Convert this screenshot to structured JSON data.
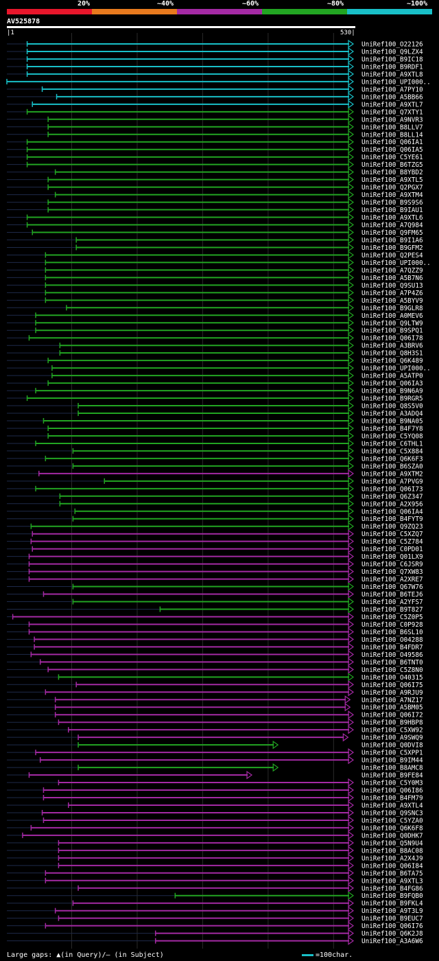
{
  "legend": {
    "colors": [
      "#e8162b",
      "#e87a1e",
      "#a42aa4",
      "#22a522",
      "#19c0c8"
    ],
    "labels": [
      "20%",
      "~40%",
      "~60%",
      "~80%",
      "~100%"
    ]
  },
  "query": {
    "id": "AV525878",
    "start": "1",
    "end": "530"
  },
  "footer": {
    "gaps_text": "Large gaps: ▲(in Query)/– (in Subject)",
    "scale_text": "=100char."
  },
  "chart_data": {
    "type": "alignment",
    "query_length": 530,
    "hits": [
      {
        "label": "UniRef100_O22126",
        "color": "cyan",
        "start": 32,
        "end": 530
      },
      {
        "label": "UniRef100_Q9LZX4",
        "color": "cyan",
        "start": 32,
        "end": 530
      },
      {
        "label": "UniRef100_B9IC18",
        "color": "cyan",
        "start": 32,
        "end": 530
      },
      {
        "label": "UniRef100_B9RDF1",
        "color": "cyan",
        "start": 32,
        "end": 530
      },
      {
        "label": "UniRef100_A9XTL8",
        "color": "cyan",
        "start": 32,
        "end": 530
      },
      {
        "label": "UniRef100_UPI000..",
        "color": "cyan",
        "start": 1,
        "end": 530
      },
      {
        "label": "UniRef100_A7PY10",
        "color": "cyan",
        "start": 55,
        "end": 530
      },
      {
        "label": "UniRef100_A5BB66",
        "color": "cyan",
        "start": 77,
        "end": 530
      },
      {
        "label": "UniRef100_A9XTL7",
        "color": "cyan",
        "start": 40,
        "end": 530
      },
      {
        "label": "UniRef100_Q7XTY1",
        "color": "green",
        "start": 32,
        "end": 530
      },
      {
        "label": "UniRef100_A9NVR3",
        "color": "green",
        "start": 64,
        "end": 530
      },
      {
        "label": "UniRef100_B8LLV7",
        "color": "green",
        "start": 64,
        "end": 530
      },
      {
        "label": "UniRef100_B8LL14",
        "color": "green",
        "start": 64,
        "end": 530
      },
      {
        "label": "UniRef100_Q06IA1",
        "color": "green",
        "start": 32,
        "end": 530
      },
      {
        "label": "UniRef100_Q06IA5",
        "color": "green",
        "start": 32,
        "end": 530
      },
      {
        "label": "UniRef100_C5YE61",
        "color": "green",
        "start": 32,
        "end": 530
      },
      {
        "label": "UniRef100_B6TZG5",
        "color": "green",
        "start": 32,
        "end": 530
      },
      {
        "label": "UniRef100_B8YBD2",
        "color": "green",
        "start": 75,
        "end": 530
      },
      {
        "label": "UniRef100_A9XTL5",
        "color": "green",
        "start": 64,
        "end": 530
      },
      {
        "label": "UniRef100_Q2PGX7",
        "color": "green",
        "start": 64,
        "end": 530
      },
      {
        "label": "UniRef100_A9XTM4",
        "color": "green",
        "start": 75,
        "end": 530
      },
      {
        "label": "UniRef100_B9S9S6",
        "color": "green",
        "start": 64,
        "end": 530
      },
      {
        "label": "UniRef100_B9IAU1",
        "color": "green",
        "start": 64,
        "end": 530
      },
      {
        "label": "UniRef100_A9XTL6",
        "color": "green",
        "start": 32,
        "end": 530
      },
      {
        "label": "UniRef100_A7Q984",
        "color": "green",
        "start": 32,
        "end": 530
      },
      {
        "label": "UniRef100_Q9FM65",
        "color": "green",
        "start": 40,
        "end": 530
      },
      {
        "label": "UniRef100_B9I1A6",
        "color": "green",
        "start": 107,
        "end": 530
      },
      {
        "label": "UniRef100_B9GFM2",
        "color": "green",
        "start": 107,
        "end": 530
      },
      {
        "label": "UniRef100_Q2PES4",
        "color": "green",
        "start": 60,
        "end": 530
      },
      {
        "label": "UniRef100_UPI000..",
        "color": "green",
        "start": 60,
        "end": 530
      },
      {
        "label": "UniRef100_A7QZZ9",
        "color": "green",
        "start": 60,
        "end": 530
      },
      {
        "label": "UniRef100_A5B7N6",
        "color": "green",
        "start": 60,
        "end": 530
      },
      {
        "label": "UniRef100_Q9SU13",
        "color": "green",
        "start": 60,
        "end": 530
      },
      {
        "label": "UniRef100_A7P4Z6",
        "color": "green",
        "start": 60,
        "end": 530
      },
      {
        "label": "UniRef100_A5BYV9",
        "color": "green",
        "start": 60,
        "end": 530
      },
      {
        "label": "UniRef100_B9GLR8",
        "color": "green",
        "start": 92,
        "end": 530
      },
      {
        "label": "UniRef100_A0MEV6",
        "color": "green",
        "start": 45,
        "end": 530
      },
      {
        "label": "UniRef100_Q9LTW9",
        "color": "green",
        "start": 45,
        "end": 530
      },
      {
        "label": "UniRef100_B9SPQ1",
        "color": "green",
        "start": 45,
        "end": 530
      },
      {
        "label": "UniRef100_Q06I78",
        "color": "green",
        "start": 35,
        "end": 530
      },
      {
        "label": "UniRef100_A3BRV6",
        "color": "green",
        "start": 82,
        "end": 530
      },
      {
        "label": "UniRef100_Q8H3S1",
        "color": "green",
        "start": 82,
        "end": 530
      },
      {
        "label": "UniRef100_Q6K489",
        "color": "green",
        "start": 64,
        "end": 530
      },
      {
        "label": "UniRef100_UPI000..",
        "color": "green",
        "start": 70,
        "end": 530
      },
      {
        "label": "UniRef100_A5ATP0",
        "color": "green",
        "start": 70,
        "end": 530
      },
      {
        "label": "UniRef100_Q06IA3",
        "color": "green",
        "start": 64,
        "end": 530
      },
      {
        "label": "UniRef100_B9N6A9",
        "color": "green",
        "start": 45,
        "end": 530
      },
      {
        "label": "UniRef100_B9RGR5",
        "color": "green",
        "start": 32,
        "end": 530
      },
      {
        "label": "UniRef100_Q8S5V0",
        "color": "green",
        "start": 110,
        "end": 530
      },
      {
        "label": "UniRef100_A3ADQ4",
        "color": "green",
        "start": 110,
        "end": 530
      },
      {
        "label": "UniRef100_B9NA05",
        "color": "green",
        "start": 57,
        "end": 530
      },
      {
        "label": "UniRef100_B4F7Y8",
        "color": "green",
        "start": 64,
        "end": 530
      },
      {
        "label": "UniRef100_C5YQ08",
        "color": "green",
        "start": 64,
        "end": 530
      },
      {
        "label": "UniRef100_C6THL1",
        "color": "green",
        "start": 45,
        "end": 530
      },
      {
        "label": "UniRef100_C5X884",
        "color": "green",
        "start": 102,
        "end": 530
      },
      {
        "label": "UniRef100_Q6K6F3",
        "color": "green",
        "start": 60,
        "end": 530
      },
      {
        "label": "UniRef100_B6SZA0",
        "color": "green",
        "start": 102,
        "end": 530
      },
      {
        "label": "UniRef100_A9XTM2",
        "color": "magenta",
        "start": 50,
        "end": 530
      },
      {
        "label": "UniRef100_A7PVG9",
        "color": "green",
        "start": 150,
        "end": 530
      },
      {
        "label": "UniRef100_Q06I73",
        "color": "green",
        "start": 45,
        "end": 530
      },
      {
        "label": "UniRef100_Q6Z347",
        "color": "green",
        "start": 82,
        "end": 530
      },
      {
        "label": "UniRef100_A2X956",
        "color": "green",
        "start": 82,
        "end": 530
      },
      {
        "label": "UniRef100_Q06IA4",
        "color": "green",
        "start": 105,
        "end": 530
      },
      {
        "label": "UniRef100_B4FYT9",
        "color": "green",
        "start": 102,
        "end": 530
      },
      {
        "label": "UniRef100_Q9ZQ23",
        "color": "green",
        "start": 38,
        "end": 530
      },
      {
        "label": "UniRef100_C5XZQ7",
        "color": "magenta",
        "start": 40,
        "end": 530
      },
      {
        "label": "UniRef100_C5Z784",
        "color": "magenta",
        "start": 38,
        "end": 530
      },
      {
        "label": "UniRef100_C0PD01",
        "color": "magenta",
        "start": 40,
        "end": 530
      },
      {
        "label": "UniRef100_Q01LX9",
        "color": "magenta",
        "start": 35,
        "end": 530
      },
      {
        "label": "UniRef100_C6JSR9",
        "color": "magenta",
        "start": 35,
        "end": 530
      },
      {
        "label": "UniRef100_Q7XW83",
        "color": "magenta",
        "start": 35,
        "end": 530
      },
      {
        "label": "UniRef100_A2XRE7",
        "color": "magenta",
        "start": 35,
        "end": 530
      },
      {
        "label": "UniRef100_Q67W76",
        "color": "green",
        "start": 102,
        "end": 530
      },
      {
        "label": "UniRef100_B6TEJ6",
        "color": "magenta",
        "start": 57,
        "end": 530
      },
      {
        "label": "UniRef100_A2YFS7",
        "color": "green",
        "start": 102,
        "end": 530
      },
      {
        "label": "UniRef100_B9T827",
        "color": "green",
        "start": 235,
        "end": 530
      },
      {
        "label": "UniRef100_C5Z0P5",
        "color": "magenta",
        "start": 10,
        "end": 530
      },
      {
        "label": "UniRef100_C0P928",
        "color": "magenta",
        "start": 35,
        "end": 530
      },
      {
        "label": "UniRef100_B6SL10",
        "color": "magenta",
        "start": 35,
        "end": 530
      },
      {
        "label": "UniRef100_O04288",
        "color": "magenta",
        "start": 43,
        "end": 530
      },
      {
        "label": "UniRef100_B4FDR7",
        "color": "magenta",
        "start": 43,
        "end": 530
      },
      {
        "label": "UniRef100_O49586",
        "color": "magenta",
        "start": 38,
        "end": 530
      },
      {
        "label": "UniRef100_B6TNT0",
        "color": "magenta",
        "start": 52,
        "end": 530
      },
      {
        "label": "UniRef100_C5Z8N0",
        "color": "magenta",
        "start": 64,
        "end": 530
      },
      {
        "label": "UniRef100_O40315",
        "color": "green",
        "start": 80,
        "end": 530
      },
      {
        "label": "UniRef100_Q06I75",
        "color": "magenta",
        "start": 107,
        "end": 530
      },
      {
        "label": "UniRef100_A9RJU9",
        "color": "magenta",
        "start": 60,
        "end": 530
      },
      {
        "label": "UniRef100_A7NZ17",
        "color": "magenta",
        "start": 75,
        "end": 525
      },
      {
        "label": "UniRef100_A5BM05",
        "color": "magenta",
        "start": 75,
        "end": 525
      },
      {
        "label": "UniRef100_Q06I72",
        "color": "magenta",
        "start": 75,
        "end": 530
      },
      {
        "label": "UniRef100_B9HBP8",
        "color": "magenta",
        "start": 80,
        "end": 530
      },
      {
        "label": "UniRef100_C5XW92",
        "color": "magenta",
        "start": 95,
        "end": 530
      },
      {
        "label": "UniRef100_A9SWQ9",
        "color": "magenta",
        "start": 110,
        "end": 522
      },
      {
        "label": "UniRef100_Q0DVI8",
        "color": "green",
        "start": 110,
        "end": 415
      },
      {
        "label": "UniRef100_C5XPP1",
        "color": "magenta",
        "start": 45,
        "end": 530
      },
      {
        "label": "UniRef100_B9IM44",
        "color": "magenta",
        "start": 52,
        "end": 530
      },
      {
        "label": "UniRef100_B8AMC8",
        "color": "green",
        "start": 110,
        "end": 415
      },
      {
        "label": "UniRef100_B9FE84",
        "color": "magenta",
        "start": 35,
        "end": 375
      },
      {
        "label": "UniRef100_C5Y0M3",
        "color": "magenta",
        "start": 80,
        "end": 530
      },
      {
        "label": "UniRef100_Q06I86",
        "color": "magenta",
        "start": 57,
        "end": 530
      },
      {
        "label": "UniRef100_B4FM79",
        "color": "magenta",
        "start": 57,
        "end": 530
      },
      {
        "label": "UniRef100_A9XTL4",
        "color": "magenta",
        "start": 95,
        "end": 530
      },
      {
        "label": "UniRef100_Q9SNC3",
        "color": "magenta",
        "start": 55,
        "end": 530
      },
      {
        "label": "UniRef100_C5YZA0",
        "color": "magenta",
        "start": 57,
        "end": 530
      },
      {
        "label": "UniRef100_Q6K6F8",
        "color": "magenta",
        "start": 38,
        "end": 530
      },
      {
        "label": "UniRef100_Q0DHK7",
        "color": "magenta",
        "start": 25,
        "end": 530
      },
      {
        "label": "UniRef100_Q5N9U4",
        "color": "magenta",
        "start": 80,
        "end": 530
      },
      {
        "label": "UniRef100_B8AC08",
        "color": "magenta",
        "start": 80,
        "end": 530
      },
      {
        "label": "UniRef100_A2X4J9",
        "color": "magenta",
        "start": 80,
        "end": 530
      },
      {
        "label": "UniRef100_Q06I84",
        "color": "magenta",
        "start": 80,
        "end": 530
      },
      {
        "label": "UniRef100_B6TA75",
        "color": "magenta",
        "start": 60,
        "end": 530
      },
      {
        "label": "UniRef100_A9XTL3",
        "color": "magenta",
        "start": 60,
        "end": 530
      },
      {
        "label": "UniRef100_B4FG86",
        "color": "magenta",
        "start": 110,
        "end": 530
      },
      {
        "label": "UniRef100_B9FQB0",
        "color": "green",
        "start": 258,
        "end": 530
      },
      {
        "label": "UniRef100_B9FKL4",
        "color": "magenta",
        "start": 102,
        "end": 530
      },
      {
        "label": "UniRef100_A9T3L9",
        "color": "magenta",
        "start": 75,
        "end": 530
      },
      {
        "label": "UniRef100_B9EUC7",
        "color": "magenta",
        "start": 80,
        "end": 530
      },
      {
        "label": "UniRef100_Q06I76",
        "color": "magenta",
        "start": 60,
        "end": 530
      },
      {
        "label": "UniRef100_Q6K2J8",
        "color": "magenta",
        "start": 228,
        "end": 530
      },
      {
        "label": "UniRef100_A3A6W6",
        "color": "magenta",
        "start": 228,
        "end": 530
      }
    ]
  }
}
